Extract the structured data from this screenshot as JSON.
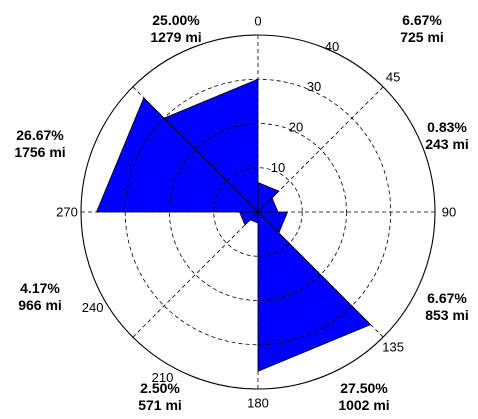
{
  "chart_data": {
    "type": "polar-bar",
    "colors": {
      "bar": "#0000ff",
      "grid": "#000000",
      "background": "#ffffff"
    },
    "r_max": 40,
    "r_ticks": [
      10,
      20,
      30,
      40
    ],
    "angle_ticks": [
      {
        "deg": 0,
        "label": "0"
      },
      {
        "deg": 45,
        "label": "45"
      },
      {
        "deg": 90,
        "label": "90"
      },
      {
        "deg": 135,
        "label": "135"
      },
      {
        "deg": 180,
        "label": "180"
      },
      {
        "deg": 210,
        "label": "210"
      },
      {
        "deg": 240,
        "label": "240"
      },
      {
        "deg": 270,
        "label": "270"
      }
    ],
    "sectors": [
      {
        "start": 0,
        "end": 45,
        "value": 6.67
      },
      {
        "start": 45,
        "end": 90,
        "value": 4.5
      },
      {
        "start": 90,
        "end": 135,
        "value": 6.67
      },
      {
        "start": 135,
        "end": 180,
        "value": 36.0
      },
      {
        "start": 180,
        "end": 225,
        "value": 2.5
      },
      {
        "start": 225,
        "end": 270,
        "value": 4.17
      },
      {
        "start": 270,
        "end": 315,
        "value": 36.5
      },
      {
        "start": 315,
        "end": 360,
        "value": 30.0
      }
    ],
    "annotations": [
      {
        "pct": "25.00%",
        "dist": "1279 mi",
        "pos": "top-left"
      },
      {
        "pct": "6.67%",
        "dist": "725 mi",
        "pos": "top-right"
      },
      {
        "pct": "0.83%",
        "dist": "243 mi",
        "pos": "right-upper"
      },
      {
        "pct": "26.67%",
        "dist": "1756 mi",
        "pos": "left-upper"
      },
      {
        "pct": "4.17%",
        "dist": "966 mi",
        "pos": "left-lower"
      },
      {
        "pct": "6.67%",
        "dist": "853 mi",
        "pos": "right-lower"
      },
      {
        "pct": "2.50%",
        "dist": "571 mi",
        "pos": "bottom-left"
      },
      {
        "pct": "27.50%",
        "dist": "1002 mi",
        "pos": "bottom-right"
      }
    ]
  }
}
